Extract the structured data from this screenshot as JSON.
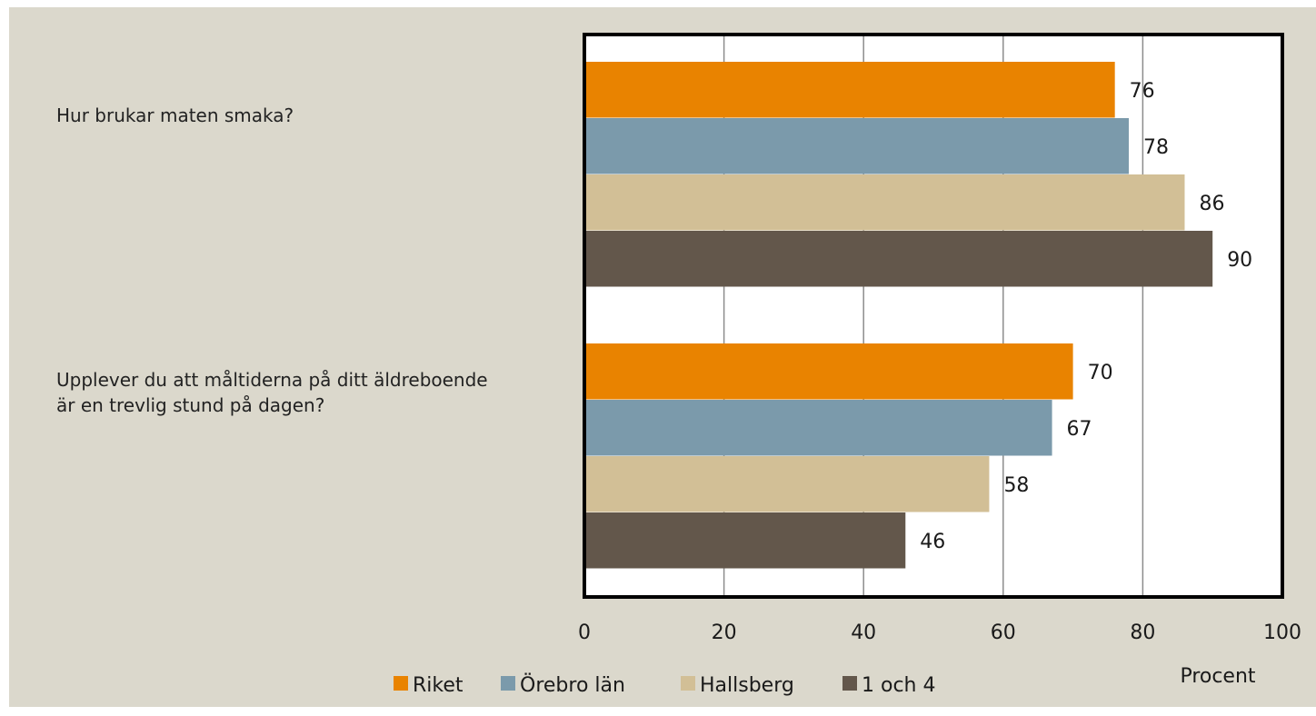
{
  "chart_data": {
    "type": "bar",
    "orientation": "horizontal",
    "categories": [
      "Hur brukar maten smaka?",
      "Upplever du att måltiderna på ditt äldreboende är en trevlig stund på dagen?"
    ],
    "series": [
      {
        "name": "Riket",
        "color": "#e98300",
        "values": [
          76,
          70
        ]
      },
      {
        "name": "Örebro län",
        "color": "#7b9aab",
        "values": [
          78,
          67
        ]
      },
      {
        "name": "Hallsberg",
        "color": "#d2bf96",
        "values": [
          86,
          58
        ]
      },
      {
        "name": "1 och 4",
        "color": "#63574b",
        "values": [
          90,
          46
        ]
      }
    ],
    "xlabel": "Procent",
    "xlim": [
      0,
      100
    ],
    "xticks": [
      0,
      20,
      40,
      60,
      80,
      100
    ],
    "grid": true,
    "legend_position": "bottom"
  }
}
